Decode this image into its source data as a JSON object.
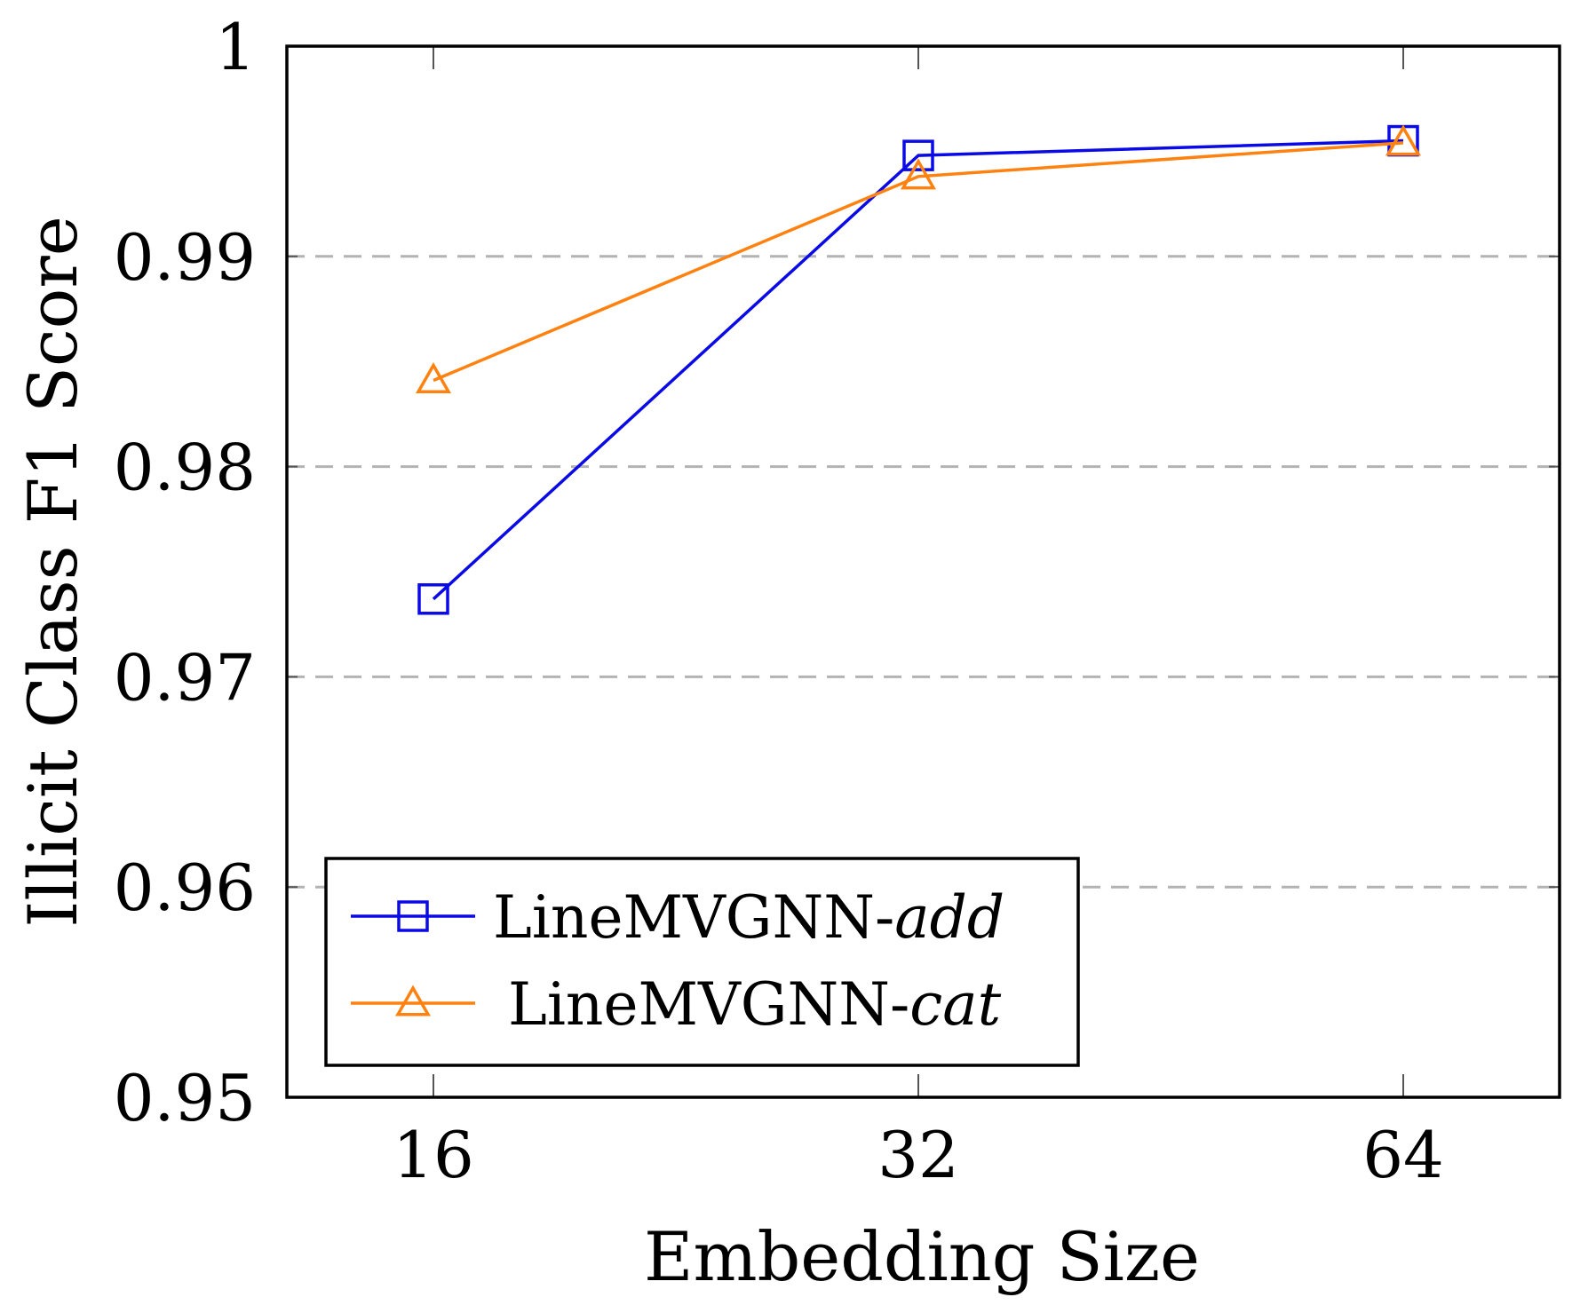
{
  "chart_data": {
    "type": "line",
    "title": "",
    "xlabel": "Embedding Size",
    "ylabel": "Illicit Class F1 Score",
    "categories": [
      "16",
      "32",
      "64"
    ],
    "ylim": [
      0.95,
      1.0
    ],
    "yticks": [
      0.95,
      0.96,
      0.97,
      0.98,
      0.99,
      1.0
    ],
    "ytick_labels": [
      "0.95",
      "0.96",
      "0.97",
      "0.98",
      "0.99",
      "1"
    ],
    "grid": "horizontal dashed",
    "legend_position": "bottom-left",
    "series": [
      {
        "name_prefix": "LineMVGNN-",
        "name_suffix": "add",
        "marker": "square",
        "color": "#0a0ae6",
        "values": [
          0.9737,
          0.9948,
          0.9955
        ]
      },
      {
        "name_prefix": "LineMVGNN-",
        "name_suffix": "cat",
        "marker": "triangle",
        "color": "#ff8210",
        "values": [
          0.9841,
          0.9938,
          0.9954
        ]
      }
    ]
  }
}
